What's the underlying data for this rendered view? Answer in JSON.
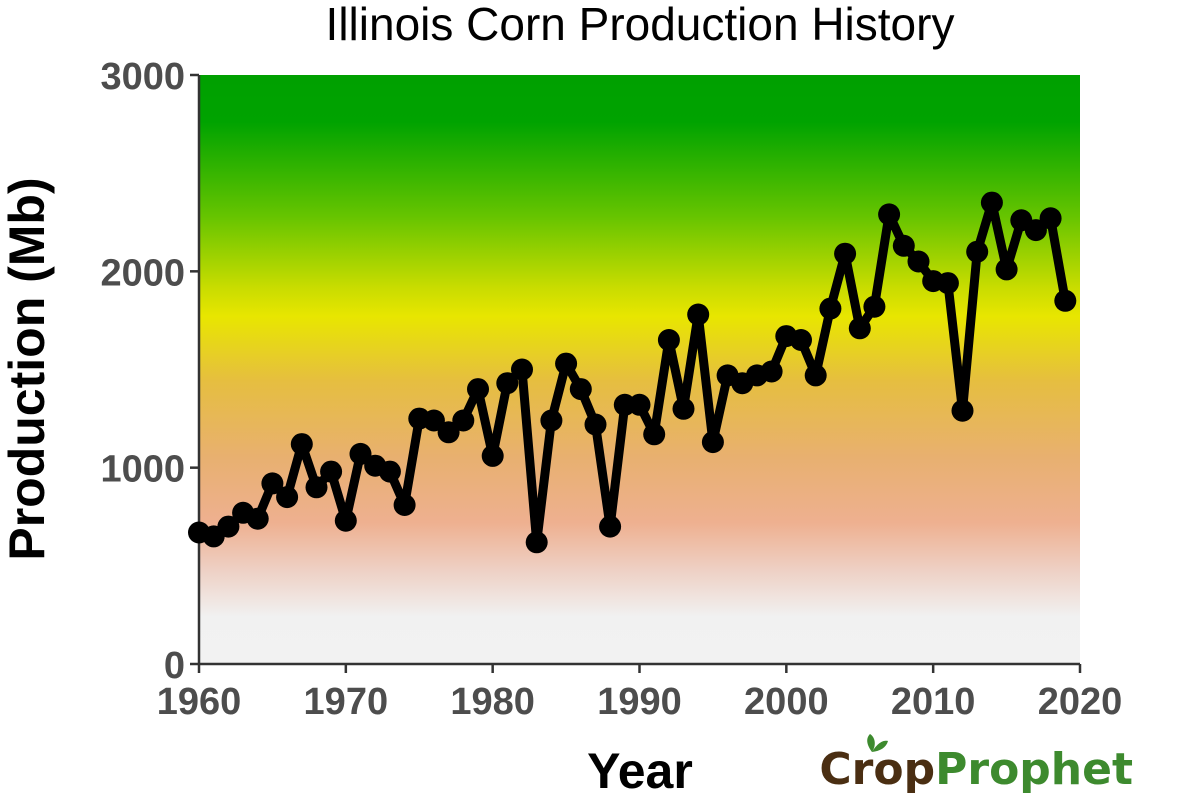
{
  "chart_data": {
    "type": "line",
    "title": "Illinois Corn Production History",
    "xlabel": "Year",
    "ylabel": "Production (Mb)",
    "xlim": [
      1960,
      2020
    ],
    "ylim": [
      0,
      3000
    ],
    "x_ticks": [
      1960,
      1970,
      1980,
      1990,
      2000,
      2010,
      2020
    ],
    "y_ticks": [
      0,
      1000,
      2000,
      3000
    ],
    "grid": false,
    "background": "vertical gradient (green top, yellow, orange, pink, light grey bottom)",
    "line_color": "#000000",
    "series": [
      {
        "x": [
          1960,
          1961,
          1962,
          1963,
          1964,
          1965,
          1966,
          1967,
          1968,
          1969,
          1970,
          1971,
          1972,
          1973,
          1974,
          1975,
          1976,
          1977,
          1978,
          1979,
          1980,
          1981,
          1982,
          1983,
          1984,
          1985,
          1986,
          1987,
          1988,
          1989,
          1990,
          1991,
          1992,
          1993,
          1994,
          1995,
          1996,
          1997,
          1998,
          1999,
          2000,
          2001,
          2002,
          2003,
          2004,
          2005,
          2006,
          2007,
          2008,
          2009,
          2010,
          2011,
          2012,
          2013,
          2014,
          2015,
          2016,
          2017,
          2018,
          2019
        ],
        "values": [
          670,
          650,
          700,
          770,
          740,
          920,
          850,
          1120,
          900,
          980,
          730,
          1070,
          1010,
          980,
          810,
          1250,
          1240,
          1180,
          1240,
          1400,
          1060,
          1430,
          1500,
          620,
          1240,
          1530,
          1400,
          1220,
          700,
          1320,
          1320,
          1170,
          1650,
          1300,
          1780,
          1130,
          1470,
          1430,
          1470,
          1490,
          1670,
          1650,
          1470,
          1810,
          2090,
          1710,
          1820,
          2290,
          2130,
          2050,
          1950,
          1940,
          1290,
          2100,
          2350,
          2010,
          2260,
          2210,
          2270,
          1850
        ]
      }
    ]
  },
  "logo": {
    "part1": "Cr",
    "part2": "p",
    "part3": "Prophet"
  }
}
